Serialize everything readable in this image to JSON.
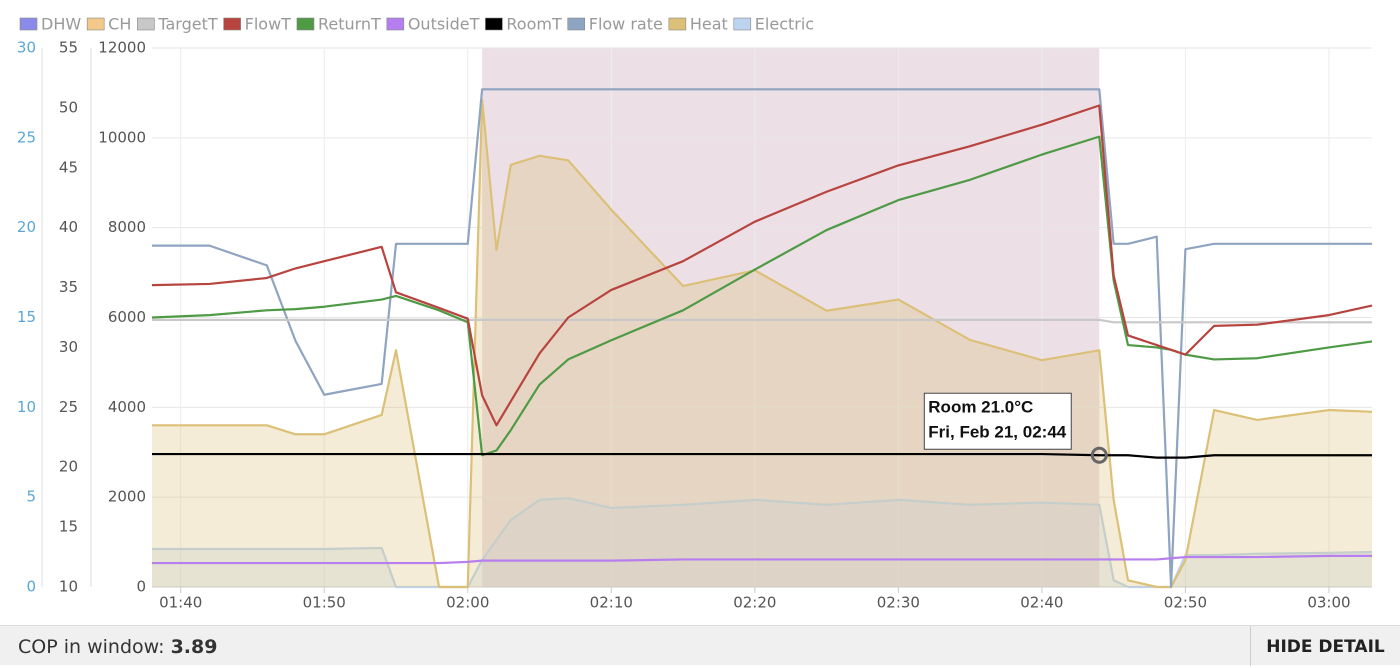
{
  "chart_data": {
    "type": "line",
    "x": [
      "01:38",
      "01:42",
      "01:46",
      "01:48",
      "01:50",
      "01:54",
      "01:55",
      "01:58",
      "02:00",
      "02:01",
      "02:02",
      "02:03",
      "02:05",
      "02:07",
      "02:10",
      "02:15",
      "02:20",
      "02:25",
      "02:30",
      "02:35",
      "02:40",
      "02:44",
      "02:45",
      "02:46",
      "02:48",
      "02:49",
      "02:50",
      "02:52",
      "02:55",
      "03:00",
      "03:03"
    ],
    "xlim": [
      "01:38",
      "03:03"
    ],
    "xticks": [
      "01:40",
      "01:50",
      "02:00",
      "02:10",
      "02:20",
      "02:30",
      "02:40",
      "02:50",
      "03:00"
    ],
    "ylim": [
      0,
      12000
    ],
    "yticks": [
      0,
      2000,
      4000,
      6000,
      8000,
      10000,
      12000
    ],
    "y2lim": [
      10,
      55
    ],
    "y2ticks": [
      10,
      15,
      20,
      25,
      30,
      35,
      40,
      45,
      50,
      55
    ],
    "y3lim": [
      0,
      30
    ],
    "y3ticks": [
      0,
      5,
      10,
      15,
      20,
      25,
      30
    ],
    "grid": true,
    "band": {
      "from": "02:01",
      "to": "02:44",
      "color": "#ecdfe6"
    },
    "series": [
      {
        "name": "DHW",
        "color": "#8a8ae8"
      },
      {
        "name": "CH",
        "color": "#f2c98a"
      },
      {
        "name": "TargetT",
        "color": "#c8c8c8",
        "axis": "y2",
        "values": [
          32.3,
          32.3,
          32.3,
          32.3,
          32.3,
          32.3,
          32.3,
          32.3,
          32.3,
          32.3,
          32.3,
          32.3,
          32.3,
          32.3,
          32.3,
          32.3,
          32.3,
          32.3,
          32.3,
          32.3,
          32.3,
          32.3,
          32.1,
          32.1,
          32.1,
          32.1,
          32.1,
          32.1,
          32.1,
          32.1,
          32.1
        ]
      },
      {
        "name": "FlowT",
        "color": "#b8443f",
        "axis": "y2",
        "values": [
          35.2,
          35.3,
          35.8,
          36.6,
          37.2,
          38.4,
          34.6,
          33.3,
          32.4,
          26.0,
          23.5,
          25.5,
          29.5,
          32.5,
          34.8,
          37.2,
          40.5,
          43.0,
          45.2,
          46.8,
          48.6,
          50.2,
          36.0,
          31.0,
          30.2,
          29.8,
          29.4,
          31.8,
          31.9,
          32.7,
          33.5
        ]
      },
      {
        "name": "ReturnT",
        "color": "#4e9a45",
        "axis": "y2",
        "values": [
          32.5,
          32.7,
          33.1,
          33.2,
          33.4,
          34.0,
          34.3,
          33.1,
          32.1,
          21.0,
          21.4,
          23.1,
          26.9,
          29.0,
          30.6,
          33.1,
          36.5,
          39.8,
          42.3,
          44.0,
          46.1,
          47.6,
          35.6,
          30.2,
          30.0,
          29.8,
          29.4,
          29.0,
          29.1,
          30.0,
          30.5
        ]
      },
      {
        "name": "OutsideT",
        "color": "#b77ef0",
        "axis": "y2",
        "values": [
          12.0,
          12.0,
          12.0,
          12.0,
          12.0,
          12.0,
          12.0,
          12.0,
          12.1,
          12.2,
          12.2,
          12.2,
          12.2,
          12.2,
          12.2,
          12.3,
          12.3,
          12.3,
          12.3,
          12.3,
          12.3,
          12.3,
          12.3,
          12.3,
          12.3,
          12.4,
          12.5,
          12.5,
          12.5,
          12.6,
          12.6
        ]
      },
      {
        "name": "RoomT",
        "color": "#000000",
        "axis": "y2",
        "values": [
          21.1,
          21.1,
          21.1,
          21.1,
          21.1,
          21.1,
          21.1,
          21.1,
          21.1,
          21.1,
          21.1,
          21.1,
          21.1,
          21.1,
          21.1,
          21.1,
          21.1,
          21.1,
          21.1,
          21.1,
          21.1,
          21.0,
          21.0,
          21.0,
          20.8,
          20.8,
          20.8,
          21.0,
          21.0,
          21.0,
          21.0
        ]
      },
      {
        "name": "Flow rate",
        "color": "#8fa4c0",
        "axis": "y3",
        "values": [
          19.0,
          19.0,
          17.9,
          13.7,
          10.7,
          11.3,
          19.1,
          19.1,
          19.1,
          27.7,
          27.7,
          27.7,
          27.7,
          27.7,
          27.7,
          27.7,
          27.7,
          27.7,
          27.7,
          27.7,
          27.7,
          27.7,
          19.1,
          19.1,
          19.5,
          0,
          18.8,
          19.1,
          19.1,
          19.1,
          19.1
        ]
      },
      {
        "name": "Heat",
        "color": "#dcc078",
        "fill": true,
        "values": [
          3600,
          3600,
          3600,
          3400,
          3400,
          3830,
          5270,
          0,
          0,
          10840,
          7500,
          9400,
          9600,
          9500,
          8400,
          6700,
          7050,
          6150,
          6400,
          5500,
          5050,
          5270,
          1940,
          150,
          0,
          0,
          600,
          3940,
          3720,
          3940,
          3900
        ]
      },
      {
        "name": "Electric",
        "color": "#bcd4ee",
        "fill": true,
        "values": [
          846,
          846,
          846,
          846,
          846,
          870,
          0,
          0,
          0,
          600,
          1050,
          1490,
          1940,
          1980,
          1760,
          1830,
          1940,
          1830,
          1940,
          1830,
          1880,
          1830,
          150,
          0,
          0,
          0,
          710,
          710,
          740,
          760,
          780
        ]
      }
    ],
    "tooltip": {
      "lines": [
        "Room 21.0°C",
        "Fri, Feb 21, 02:44"
      ],
      "series": 6,
      "index": 21
    },
    "footer": {
      "label": "COP in window:",
      "value": "3.89",
      "button": "HIDE DETAIL"
    }
  }
}
